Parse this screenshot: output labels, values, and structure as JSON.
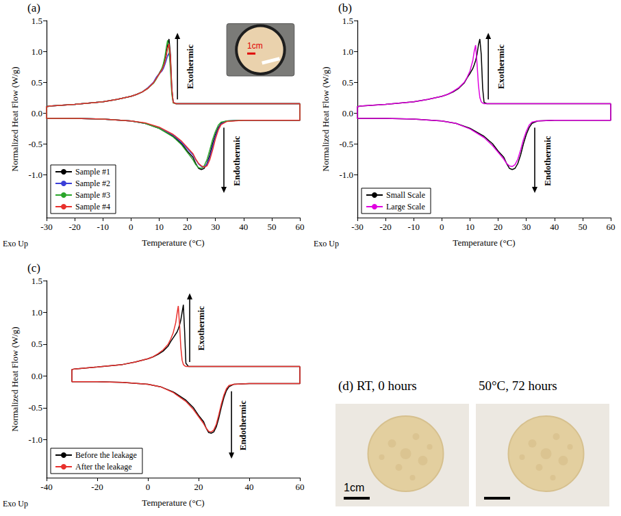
{
  "chart_data": [
    {
      "type": "line",
      "panel": "(a)",
      "xlabel": "Temperature (°C)",
      "ylabel": "Normalized Heat Flow (W/g)",
      "footnote": "Exo Up",
      "annotations": [
        "Exothermic",
        "Endothermic"
      ],
      "inset_text": "1cm",
      "xlim": [
        -30,
        60
      ],
      "xticks": [
        -30,
        -20,
        -10,
        0,
        10,
        20,
        30,
        40,
        50,
        60
      ],
      "ylim": [
        -1.7,
        1.5
      ],
      "yticks": [
        {
          "value": -1,
          "label": "-1.0"
        },
        -0.5,
        {
          "value": 0,
          "label": "0.0"
        },
        0.5,
        {
          "value": 1,
          "label": "1.0"
        },
        1.5
      ],
      "grid": false,
      "legend": "lower left",
      "x": [
        60,
        59,
        50,
        40,
        30,
        20,
        16,
        15,
        14.5,
        14,
        13.5,
        13,
        12.5,
        12,
        11.5,
        11,
        10,
        9,
        8,
        6,
        4,
        2,
        0,
        -5,
        -10,
        -20,
        -29,
        -30,
        -30,
        -20,
        -10,
        0,
        5,
        10,
        15,
        18,
        20,
        22,
        23,
        24,
        25,
        26,
        27,
        28,
        29,
        30,
        31,
        32,
        34,
        40,
        50,
        59,
        60,
        60
      ],
      "series": [
        {
          "name": "Sample #1",
          "color": "#000000",
          "values": [
            0.15,
            0.15,
            0.15,
            0.15,
            0.15,
            0.15,
            0.15,
            0.17,
            0.4,
            0.95,
            1.2,
            1.1,
            0.95,
            0.85,
            0.78,
            0.72,
            0.64,
            0.57,
            0.49,
            0.4,
            0.34,
            0.3,
            0.27,
            0.22,
            0.18,
            0.14,
            0.11,
            0.1,
            -0.09,
            -0.09,
            -0.1,
            -0.13,
            -0.17,
            -0.25,
            -0.38,
            -0.5,
            -0.62,
            -0.72,
            -0.82,
            -0.9,
            -0.92,
            -0.9,
            -0.82,
            -0.68,
            -0.5,
            -0.35,
            -0.24,
            -0.17,
            -0.13,
            -0.12,
            -0.12,
            -0.12,
            -0.12,
            0.15
          ]
        },
        {
          "name": "Sample #2",
          "color": "#3b3fd8",
          "values": [
            0.15,
            0.15,
            0.15,
            0.15,
            0.15,
            0.15,
            0.15,
            0.17,
            0.35,
            0.8,
            0.97,
            0.93,
            0.85,
            0.78,
            0.72,
            0.68,
            0.63,
            0.58,
            0.5,
            0.41,
            0.34,
            0.3,
            0.27,
            0.22,
            0.18,
            0.14,
            0.11,
            0.1,
            -0.09,
            -0.09,
            -0.1,
            -0.13,
            -0.17,
            -0.24,
            -0.36,
            -0.48,
            -0.58,
            -0.68,
            -0.76,
            -0.83,
            -0.87,
            -0.88,
            -0.83,
            -0.72,
            -0.55,
            -0.38,
            -0.26,
            -0.18,
            -0.13,
            -0.12,
            -0.12,
            -0.12,
            -0.12,
            0.15
          ]
        },
        {
          "name": "Sample #3",
          "color": "#2aa52a",
          "values": [
            0.15,
            0.15,
            0.15,
            0.15,
            0.15,
            0.15,
            0.15,
            0.16,
            0.3,
            0.7,
            1.05,
            1.18,
            1.05,
            0.9,
            0.8,
            0.72,
            0.63,
            0.55,
            0.48,
            0.4,
            0.34,
            0.3,
            0.27,
            0.22,
            0.18,
            0.14,
            0.11,
            0.1,
            -0.09,
            -0.09,
            -0.1,
            -0.13,
            -0.17,
            -0.25,
            -0.39,
            -0.52,
            -0.64,
            -0.76,
            -0.84,
            -0.89,
            -0.9,
            -0.86,
            -0.76,
            -0.6,
            -0.43,
            -0.3,
            -0.2,
            -0.15,
            -0.13,
            -0.12,
            -0.12,
            -0.12,
            -0.12,
            0.15
          ]
        },
        {
          "name": "Sample #4",
          "color": "#e8302c",
          "values": [
            0.15,
            0.15,
            0.15,
            0.15,
            0.15,
            0.15,
            0.15,
            0.17,
            0.38,
            0.9,
            1.12,
            1.05,
            0.92,
            0.82,
            0.75,
            0.7,
            0.63,
            0.56,
            0.49,
            0.4,
            0.34,
            0.3,
            0.27,
            0.22,
            0.18,
            0.14,
            0.11,
            0.1,
            -0.09,
            -0.09,
            -0.1,
            -0.13,
            -0.16,
            -0.23,
            -0.35,
            -0.46,
            -0.56,
            -0.66,
            -0.75,
            -0.82,
            -0.86,
            -0.88,
            -0.86,
            -0.76,
            -0.6,
            -0.42,
            -0.28,
            -0.19,
            -0.14,
            -0.12,
            -0.12,
            -0.12,
            -0.12,
            0.15
          ]
        }
      ]
    },
    {
      "type": "line",
      "panel": "(b)",
      "xlabel": "Temperature (°C)",
      "ylabel": "Normalized Heat Flow (W/g)",
      "footnote": "Exo Up",
      "annotations": [
        "Exothermic",
        "Endothermic"
      ],
      "xlim": [
        -30,
        60
      ],
      "xticks": [
        -30,
        -20,
        -10,
        0,
        10,
        20,
        30,
        40,
        50,
        60
      ],
      "ylim": [
        -1.7,
        1.5
      ],
      "yticks": [
        {
          "value": -1,
          "label": "-1.0"
        },
        -0.5,
        {
          "value": 0,
          "label": "0.0"
        },
        0.5,
        {
          "value": 1,
          "label": "1.0"
        },
        1.5
      ],
      "grid": false,
      "legend": "lower left",
      "x": [
        60,
        59,
        50,
        40,
        30,
        20,
        16,
        15,
        14.5,
        14,
        13.5,
        13,
        12.5,
        12,
        11.5,
        11,
        10,
        9,
        8,
        6,
        4,
        2,
        0,
        -5,
        -10,
        -20,
        -29,
        -30,
        -30,
        -20,
        -10,
        0,
        5,
        10,
        15,
        18,
        20,
        22,
        23,
        24,
        25,
        26,
        27,
        28,
        29,
        30,
        31,
        32,
        34,
        40,
        50,
        59,
        60,
        60
      ],
      "series": [
        {
          "name": "Small Scale",
          "color": "#000000",
          "values": [
            0.15,
            0.15,
            0.15,
            0.15,
            0.15,
            0.15,
            0.15,
            0.17,
            0.4,
            0.95,
            1.2,
            1.1,
            0.95,
            0.85,
            0.78,
            0.72,
            0.64,
            0.57,
            0.49,
            0.4,
            0.34,
            0.3,
            0.27,
            0.22,
            0.18,
            0.14,
            0.11,
            0.1,
            -0.09,
            -0.09,
            -0.1,
            -0.13,
            -0.17,
            -0.25,
            -0.38,
            -0.5,
            -0.62,
            -0.72,
            -0.82,
            -0.9,
            -0.92,
            -0.9,
            -0.82,
            -0.68,
            -0.5,
            -0.35,
            -0.24,
            -0.17,
            -0.13,
            -0.12,
            -0.12,
            -0.12,
            -0.12,
            0.15
          ]
        },
        {
          "name": "Large Scale",
          "color": "#e000e0",
          "values": [
            0.15,
            0.15,
            0.15,
            0.15,
            0.15,
            0.15,
            0.15,
            0.15,
            0.16,
            0.18,
            0.25,
            0.45,
            0.8,
            1.1,
            1.0,
            0.85,
            0.68,
            0.58,
            0.5,
            0.41,
            0.35,
            0.3,
            0.27,
            0.22,
            0.18,
            0.14,
            0.11,
            0.1,
            -0.09,
            -0.09,
            -0.1,
            -0.13,
            -0.17,
            -0.26,
            -0.4,
            -0.53,
            -0.64,
            -0.75,
            -0.82,
            -0.86,
            -0.87,
            -0.84,
            -0.75,
            -0.6,
            -0.43,
            -0.3,
            -0.2,
            -0.15,
            -0.13,
            -0.12,
            -0.12,
            -0.12,
            -0.12,
            0.15
          ]
        }
      ]
    },
    {
      "type": "line",
      "panel": "(c)",
      "xlabel": "Temperature (°C)",
      "ylabel": "Normalized Heat Flow (W/g)",
      "footnote": "Exo Up",
      "annotations": [
        "Exothermic",
        "Endothermic"
      ],
      "xlim": [
        -40,
        60
      ],
      "xticks": [
        -40,
        -20,
        0,
        20,
        40,
        60
      ],
      "ylim": [
        -1.6,
        1.5
      ],
      "yticks": [
        {
          "value": -1,
          "label": "-1.0"
        },
        -0.5,
        {
          "value": 0,
          "label": "0.0"
        },
        0.5,
        {
          "value": 1,
          "label": "1.0"
        },
        1.5
      ],
      "grid": false,
      "legend": "lower left",
      "x": [
        60,
        59,
        50,
        40,
        30,
        20,
        16,
        15,
        14.5,
        14,
        13.5,
        13,
        12.5,
        12,
        11.5,
        11,
        10,
        9,
        8,
        6,
        4,
        2,
        0,
        -5,
        -10,
        -20,
        -29,
        -30,
        -30,
        -20,
        -10,
        0,
        5,
        10,
        15,
        18,
        20,
        22,
        23,
        24,
        25,
        26,
        27,
        28,
        29,
        30,
        31,
        32,
        34,
        40,
        50,
        59,
        60,
        60
      ],
      "series": [
        {
          "name": "Before the leakage",
          "color": "#000000",
          "values": [
            0.15,
            0.15,
            0.15,
            0.15,
            0.15,
            0.15,
            0.15,
            0.2,
            0.7,
            1.12,
            1.0,
            0.88,
            0.8,
            0.74,
            0.69,
            0.66,
            0.6,
            0.54,
            0.47,
            0.39,
            0.34,
            0.3,
            0.27,
            0.22,
            0.18,
            0.14,
            0.11,
            0.1,
            -0.09,
            -0.09,
            -0.1,
            -0.13,
            -0.17,
            -0.25,
            -0.38,
            -0.5,
            -0.62,
            -0.72,
            -0.82,
            -0.89,
            -0.9,
            -0.88,
            -0.8,
            -0.66,
            -0.49,
            -0.34,
            -0.23,
            -0.17,
            -0.13,
            -0.12,
            -0.12,
            -0.12,
            -0.12,
            0.15
          ]
        },
        {
          "name": "After the leakage",
          "color": "#e8302c",
          "values": [
            0.15,
            0.15,
            0.15,
            0.15,
            0.15,
            0.15,
            0.15,
            0.15,
            0.16,
            0.18,
            0.25,
            0.45,
            0.8,
            1.1,
            0.98,
            0.84,
            0.68,
            0.58,
            0.5,
            0.41,
            0.35,
            0.3,
            0.27,
            0.22,
            0.18,
            0.14,
            0.11,
            0.1,
            -0.09,
            -0.09,
            -0.1,
            -0.13,
            -0.17,
            -0.26,
            -0.4,
            -0.53,
            -0.64,
            -0.75,
            -0.82,
            -0.87,
            -0.88,
            -0.85,
            -0.76,
            -0.61,
            -0.44,
            -0.3,
            -0.2,
            -0.15,
            -0.13,
            -0.12,
            -0.12,
            -0.12,
            -0.12,
            0.15
          ]
        }
      ]
    }
  ],
  "panel_d": {
    "label": "(d)",
    "photos": [
      {
        "caption": "RT, 0 hours",
        "scale_text": "1cm"
      },
      {
        "caption": "50°C, 72 hours"
      }
    ]
  }
}
